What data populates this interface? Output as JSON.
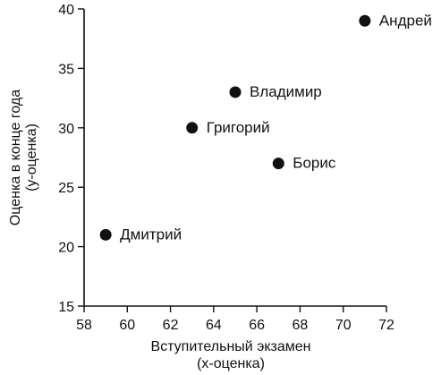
{
  "chart_data": {
    "type": "scatter",
    "title": "",
    "xlabel_lines": [
      "Вступительный экзамен",
      "(x-оценка)"
    ],
    "ylabel_lines": [
      "Оценка в конце года",
      "(y-оценка)"
    ],
    "xlim": [
      58,
      72
    ],
    "ylim": [
      15,
      40
    ],
    "x_ticks": [
      58,
      60,
      62,
      64,
      66,
      68,
      70,
      72
    ],
    "y_ticks": [
      15,
      20,
      25,
      30,
      35,
      40
    ],
    "grid": false,
    "points": [
      {
        "label": "Андрей",
        "x": 71,
        "y": 39
      },
      {
        "label": "Владимир",
        "x": 65,
        "y": 33
      },
      {
        "label": "Григорий",
        "x": 63,
        "y": 30
      },
      {
        "label": "Борис",
        "x": 67,
        "y": 27
      },
      {
        "label": "Дмитрий",
        "x": 59,
        "y": 21
      }
    ]
  }
}
